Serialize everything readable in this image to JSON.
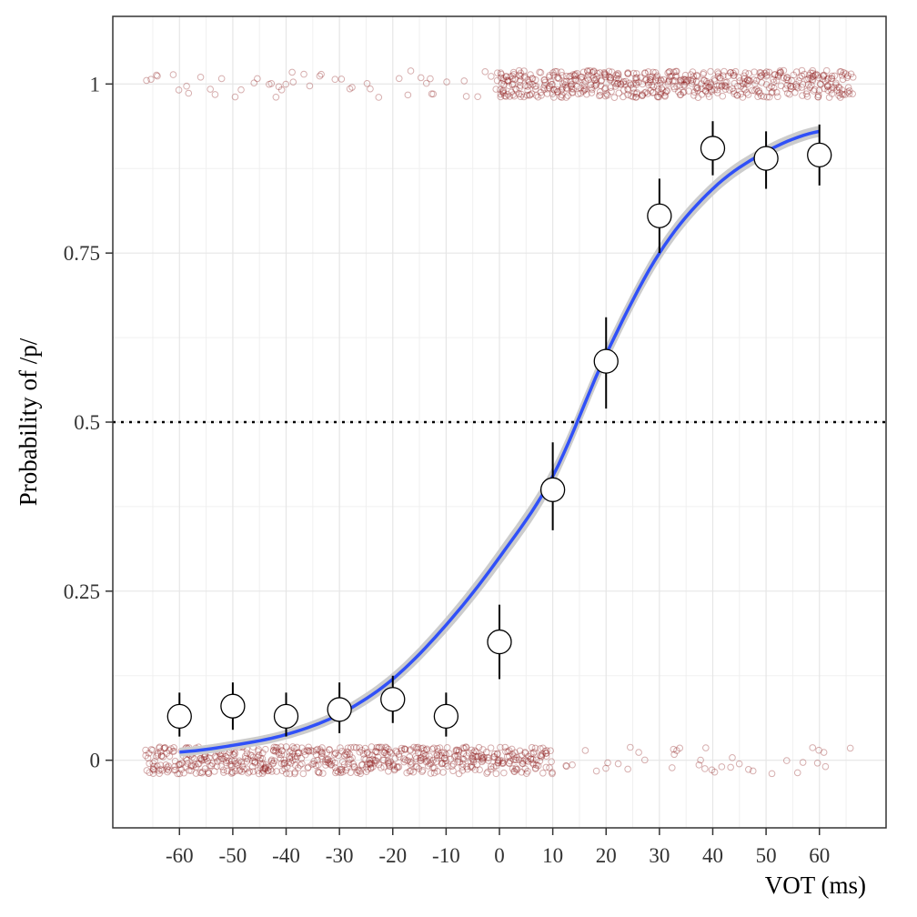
{
  "chart_data": {
    "type": "scatter",
    "xlabel": "VOT (ms)",
    "ylabel": "Probability of /p/",
    "xlim": [
      -72.5,
      72.5
    ],
    "ylim": [
      -0.1,
      1.1
    ],
    "x_ticks": [
      "-60",
      "-50",
      "-40",
      "-30",
      "-20",
      "-10",
      "0",
      "10",
      "20",
      "30",
      "40",
      "50",
      "60"
    ],
    "y_ticks": [
      "0",
      "0.25",
      "0.5",
      "0.75",
      "1"
    ],
    "reference_line": {
      "y": 0.5,
      "style": "dotted"
    },
    "grid": true,
    "series": [
      {
        "kind": "points_with_errorbars",
        "marker": "open-circle",
        "points": [
          {
            "x": -60,
            "y": 0.065,
            "ymin": 0.035,
            "ymax": 0.1
          },
          {
            "x": -50,
            "y": 0.08,
            "ymin": 0.045,
            "ymax": 0.115
          },
          {
            "x": -40,
            "y": 0.065,
            "ymin": 0.035,
            "ymax": 0.1
          },
          {
            "x": -30,
            "y": 0.075,
            "ymin": 0.04,
            "ymax": 0.115
          },
          {
            "x": -20,
            "y": 0.09,
            "ymin": 0.055,
            "ymax": 0.125
          },
          {
            "x": -10,
            "y": 0.065,
            "ymin": 0.035,
            "ymax": 0.1
          },
          {
            "x": 0,
            "y": 0.175,
            "ymin": 0.12,
            "ymax": 0.23
          },
          {
            "x": 10,
            "y": 0.4,
            "ymin": 0.34,
            "ymax": 0.47
          },
          {
            "x": 20,
            "y": 0.59,
            "ymin": 0.52,
            "ymax": 0.655
          },
          {
            "x": 30,
            "y": 0.805,
            "ymin": 0.75,
            "ymax": 0.86
          },
          {
            "x": 40,
            "y": 0.905,
            "ymin": 0.865,
            "ymax": 0.945
          },
          {
            "x": 50,
            "y": 0.89,
            "ymin": 0.845,
            "ymax": 0.93
          },
          {
            "x": 60,
            "y": 0.895,
            "ymin": 0.85,
            "ymax": 0.94
          }
        ]
      },
      {
        "kind": "logistic_fit",
        "color": "#3050f8",
        "ribbon_color": "#cccccc",
        "curve": [
          {
            "x": -60,
            "y": 0.012
          },
          {
            "x": -50,
            "y": 0.022
          },
          {
            "x": -40,
            "y": 0.038
          },
          {
            "x": -30,
            "y": 0.068
          },
          {
            "x": -20,
            "y": 0.12
          },
          {
            "x": -10,
            "y": 0.2
          },
          {
            "x": 0,
            "y": 0.3
          },
          {
            "x": 10,
            "y": 0.42
          },
          {
            "x": 20,
            "y": 0.6
          },
          {
            "x": 30,
            "y": 0.75
          },
          {
            "x": 40,
            "y": 0.845
          },
          {
            "x": 50,
            "y": 0.9
          },
          {
            "x": 60,
            "y": 0.93
          }
        ]
      },
      {
        "kind": "jittered_raw_responses",
        "color": "#8b1a1a",
        "marker": "open-circle",
        "x_range": [
          -66,
          66
        ],
        "responses_at_y1_concentrated_from_x": 0,
        "responses_at_y0_concentrated_until_x": 10
      }
    ]
  }
}
